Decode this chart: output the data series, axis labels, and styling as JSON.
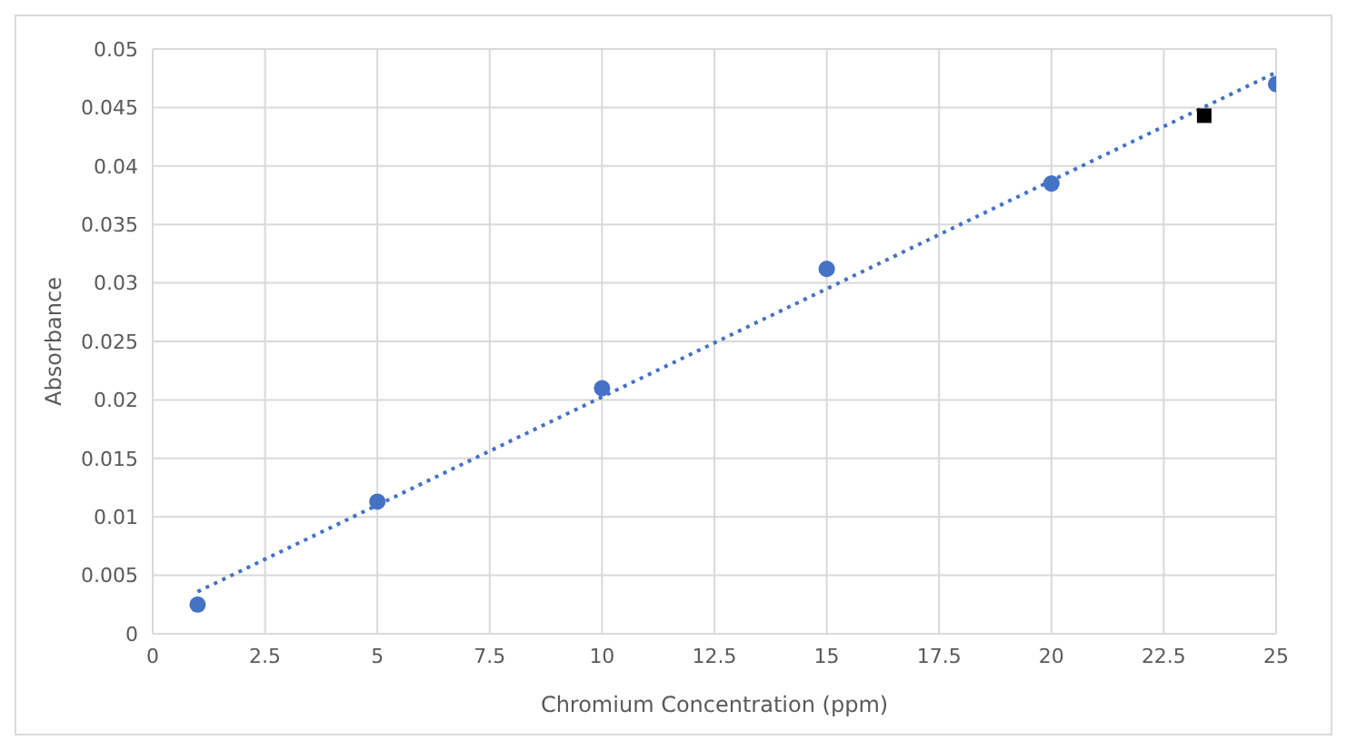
{
  "chart_data": {
    "type": "scatter",
    "xlabel": "Chromium Concentration (ppm)",
    "ylabel": "Absorbance",
    "series": [
      {
        "color": "#4472c4",
        "marker": "circle",
        "x": [
          1,
          5,
          10,
          15,
          20,
          25
        ],
        "values": [
          0.0025,
          0.0113,
          0.021,
          0.0312,
          0.0385,
          0.047
        ]
      },
      {
        "type": "line",
        "color": "#4472c4",
        "marker": "none",
        "line_style": "dotted",
        "x": [
          1,
          25
        ],
        "values": [
          0.0036,
          0.048
        ]
      },
      {
        "type": "scatter",
        "color": "#000000",
        "marker": "square",
        "x": [
          23.4
        ],
        "values": [
          0.0443
        ]
      }
    ],
    "xlim": [
      0,
      25
    ],
    "xticks": [
      0,
      2.5,
      5,
      7.5,
      10,
      12.5,
      15,
      17.5,
      20,
      22.5,
      25
    ],
    "ylim": [
      0,
      0.05
    ],
    "yticks": [
      0,
      0.005,
      0.01,
      0.015,
      0.02,
      0.025,
      0.03,
      0.035,
      0.04,
      0.045,
      0.05
    ],
    "grid": true
  }
}
